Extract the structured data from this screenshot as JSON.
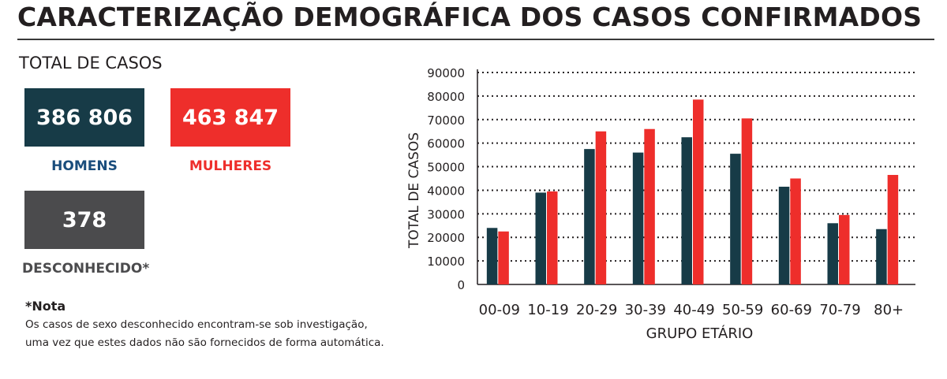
{
  "header": {
    "title": "CARACTERIZAÇÃO DEMOGRÁFICA DOS CASOS CONFIRMADOS"
  },
  "totals": {
    "section_label": "TOTAL DE CASOS",
    "men": {
      "value": "386 806",
      "label": "HOMENS"
    },
    "women": {
      "value": "463 847",
      "label": "MULHERES"
    },
    "unknown": {
      "value": "378",
      "label": "DESCONHECIDO*"
    }
  },
  "note": {
    "title": "*Nota",
    "line1": "Os casos de sexo desconhecido encontram-se sob investigação,",
    "line2": "uma vez que estes dados não são fornecidos de forma automática."
  },
  "colors": {
    "men": "#173b47",
    "women": "#ee2e2b",
    "unknown": "#4b4b4d",
    "men_label": "#1a4d7c",
    "women_label": "#ee2e2b",
    "unknown_label": "#4b4b4d"
  },
  "chart_data": {
    "type": "bar",
    "xlabel": "GRUPO ETÁRIO",
    "ylabel": "TOTAL DE CASOS",
    "ylim": [
      0,
      90000
    ],
    "yticks": [
      0,
      10000,
      20000,
      30000,
      40000,
      50000,
      60000,
      70000,
      80000,
      90000
    ],
    "grid": true,
    "categories": [
      "00-09",
      "10-19",
      "20-29",
      "30-39",
      "40-49",
      "50-59",
      "60-69",
      "70-79",
      "80+"
    ],
    "series": [
      {
        "values": [
          24000,
          39000,
          57500,
          56000,
          62500,
          55500,
          41500,
          26000,
          23500
        ]
      },
      {
        "values": [
          22500,
          39500,
          65000,
          66000,
          78500,
          70500,
          45000,
          29500,
          46500
        ]
      }
    ]
  }
}
